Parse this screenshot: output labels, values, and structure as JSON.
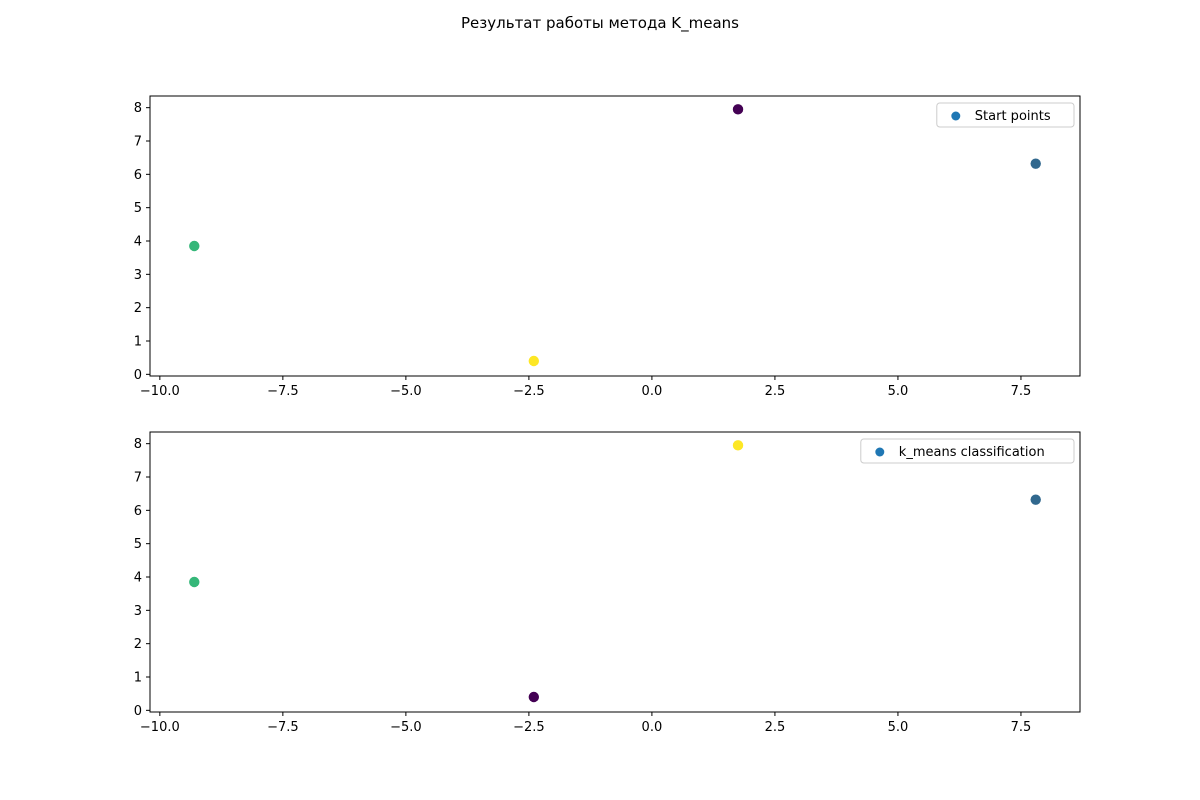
{
  "figure_title": "Результат работы метода K_means",
  "colors": {
    "legend_marker": "#1f77b4",
    "purple": "#440154",
    "teal": "#31688e",
    "green": "#35b779",
    "yellow": "#fde725"
  },
  "chart_data": [
    {
      "type": "scatter",
      "title": "",
      "xlabel": "",
      "ylabel": "",
      "xlim": [
        -10.2,
        8.7
      ],
      "ylim": [
        -0.05,
        8.35
      ],
      "xticks": [
        -10.0,
        -7.5,
        -5.0,
        -2.5,
        0.0,
        2.5,
        5.0,
        7.5
      ],
      "xtick_labels": [
        "−10.0",
        "−7.5",
        "−5.0",
        "−2.5",
        "0.0",
        "2.5",
        "5.0",
        "7.5"
      ],
      "yticks": [
        0,
        1,
        2,
        3,
        4,
        5,
        6,
        7,
        8
      ],
      "ytick_labels": [
        "0",
        "1",
        "2",
        "3",
        "4",
        "5",
        "6",
        "7",
        "8"
      ],
      "grid": false,
      "legend": {
        "placement": "top-right",
        "label": "Start points"
      },
      "points": [
        {
          "x": 1.75,
          "y": 7.95,
          "color": "#440154"
        },
        {
          "x": 7.8,
          "y": 6.32,
          "color": "#31688e"
        },
        {
          "x": -9.3,
          "y": 3.85,
          "color": "#35b779"
        },
        {
          "x": -2.4,
          "y": 0.4,
          "color": "#fde725"
        }
      ]
    },
    {
      "type": "scatter",
      "title": "",
      "xlabel": "",
      "ylabel": "",
      "xlim": [
        -10.2,
        8.7
      ],
      "ylim": [
        -0.05,
        8.35
      ],
      "xticks": [
        -10.0,
        -7.5,
        -5.0,
        -2.5,
        0.0,
        2.5,
        5.0,
        7.5
      ],
      "xtick_labels": [
        "−10.0",
        "−7.5",
        "−5.0",
        "−2.5",
        "0.0",
        "2.5",
        "5.0",
        "7.5"
      ],
      "yticks": [
        0,
        1,
        2,
        3,
        4,
        5,
        6,
        7,
        8
      ],
      "ytick_labels": [
        "0",
        "1",
        "2",
        "3",
        "4",
        "5",
        "6",
        "7",
        "8"
      ],
      "grid": false,
      "legend": {
        "placement": "top-right",
        "label": "k_means classification"
      },
      "points": [
        {
          "x": 1.75,
          "y": 7.95,
          "color": "#fde725"
        },
        {
          "x": 7.8,
          "y": 6.32,
          "color": "#31688e"
        },
        {
          "x": -9.3,
          "y": 3.85,
          "color": "#35b779"
        },
        {
          "x": -2.4,
          "y": 0.4,
          "color": "#440154"
        }
      ]
    }
  ]
}
